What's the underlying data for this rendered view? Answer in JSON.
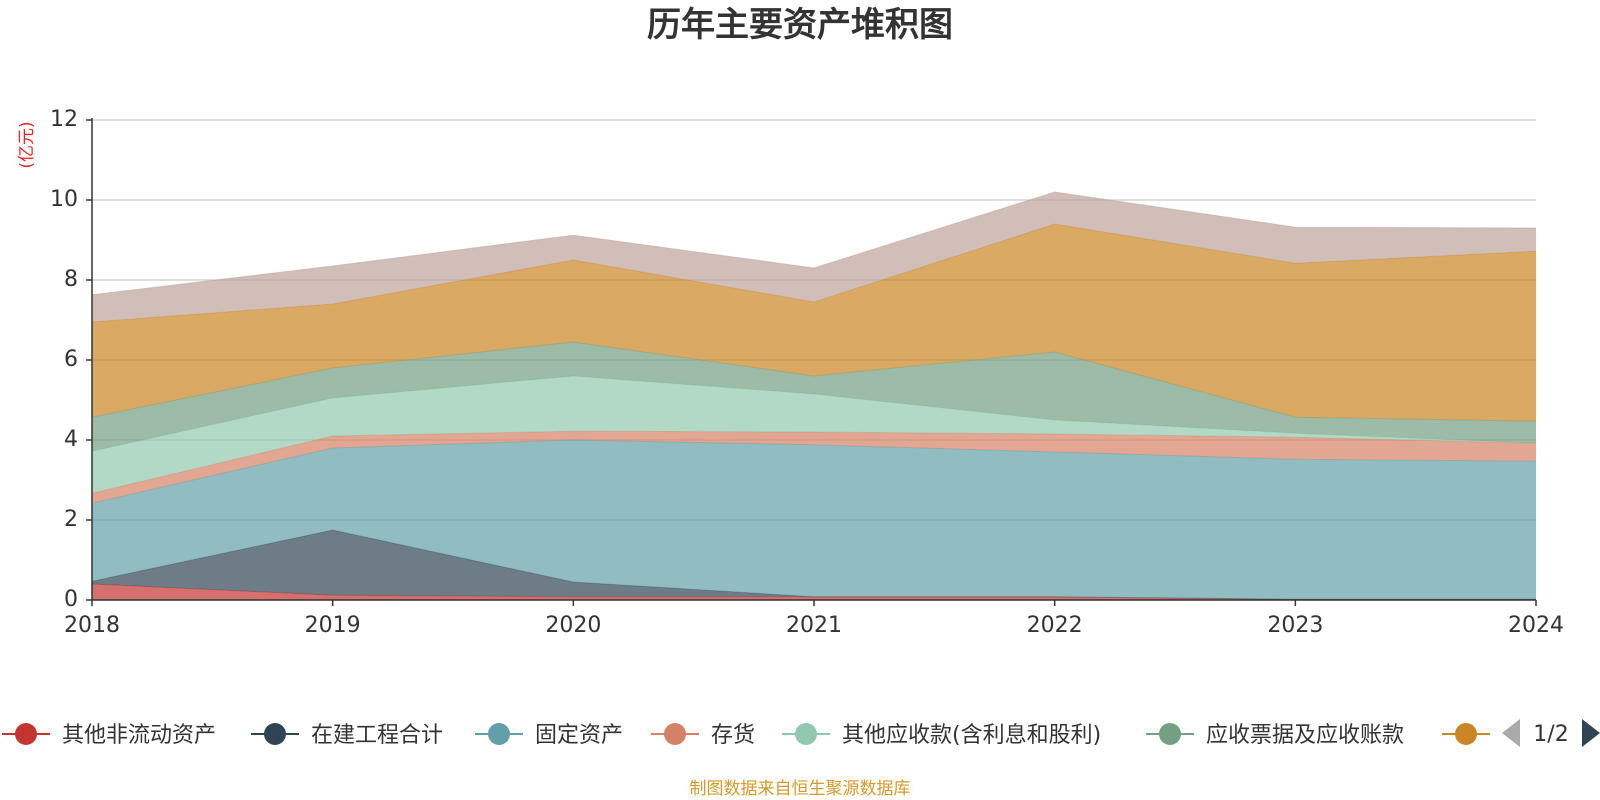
{
  "chart_data": {
    "type": "area",
    "stacked": true,
    "title": "历年主要资产堆积图",
    "unit_label": "(亿元)",
    "x": [
      "2018",
      "2019",
      "2020",
      "2021",
      "2022",
      "2023",
      "2024"
    ],
    "ylim": [
      0,
      12
    ],
    "yticks": [
      "0",
      "2",
      "4",
      "6",
      "8",
      "10",
      "12"
    ],
    "grid": true,
    "series": [
      {
        "name": "其他非流动资产",
        "color": "#c23531",
        "values": [
          0.4,
          0.12,
          0.08,
          0.08,
          0.08,
          0.02,
          0.02
        ]
      },
      {
        "name": "在建工程合计",
        "color": "#2f4554",
        "values": [
          0.07,
          1.63,
          0.37,
          0.0,
          0.0,
          0.0,
          0.0
        ]
      },
      {
        "name": "固定资产",
        "color": "#61a0a8",
        "values": [
          1.95,
          2.05,
          3.55,
          3.8,
          3.62,
          3.5,
          3.45
        ]
      },
      {
        "name": "存货",
        "color": "#d48265",
        "values": [
          0.25,
          0.3,
          0.22,
          0.32,
          0.45,
          0.55,
          0.45
        ]
      },
      {
        "name": "其他应收款(含利息和股利)",
        "color": "#91c7ae",
        "values": [
          1.05,
          0.95,
          1.38,
          0.95,
          0.35,
          0.1,
          0.0
        ]
      },
      {
        "name": "应收票据及应收账款",
        "color": "#749f83",
        "values": [
          0.85,
          0.75,
          0.85,
          0.45,
          1.7,
          0.4,
          0.55
        ]
      },
      {
        "name": "",
        "color": "#ca8622",
        "values": [
          2.38,
          1.6,
          2.05,
          1.85,
          3.2,
          3.85,
          4.25
        ]
      },
      {
        "name": "",
        "color": "#bda29a",
        "values": [
          0.68,
          0.95,
          0.62,
          0.85,
          0.8,
          0.9,
          0.58
        ]
      }
    ],
    "legend_placement": "bottom"
  },
  "legend": {
    "page": "1/2",
    "prev_icon": "triangle-left-icon",
    "next_icon": "triangle-right-icon",
    "inactive_color": "#aaaaaa",
    "active_color": "#2f4554"
  },
  "source_note": "制图数据来自恒生聚源数据库"
}
